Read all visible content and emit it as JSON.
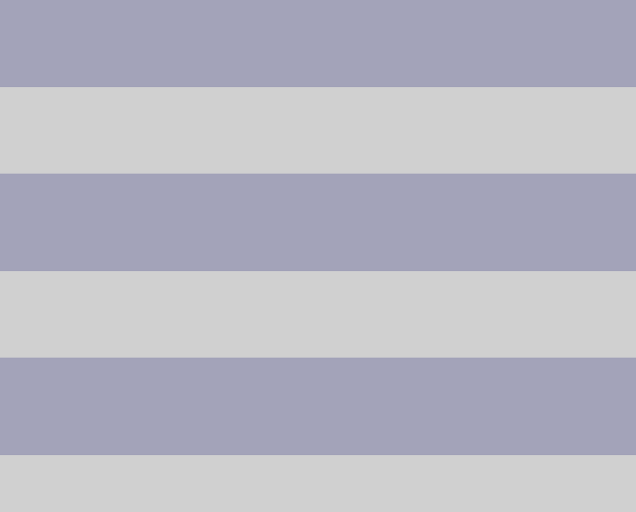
{
  "colors": {
    "dark_band": "#a3a3b9",
    "light_band": "#d0d0d0"
  },
  "bands": [
    {
      "tone": "dark"
    },
    {
      "tone": "light"
    },
    {
      "tone": "dark"
    },
    {
      "tone": "light"
    },
    {
      "tone": "dark"
    },
    {
      "tone": "light"
    }
  ]
}
